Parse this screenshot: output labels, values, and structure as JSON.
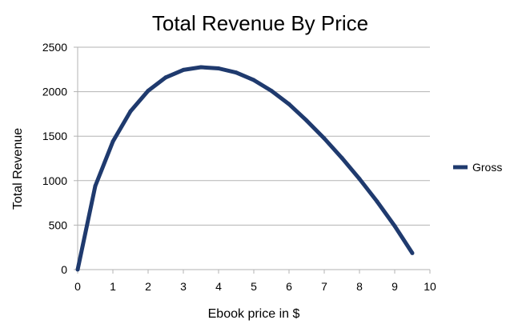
{
  "chart_data": {
    "type": "line",
    "title": "Total Revenue By Price",
    "xlabel": "Ebook price in $",
    "ylabel": "Total Revenue",
    "xlim": [
      0,
      10
    ],
    "ylim": [
      0,
      2500
    ],
    "xticks": [
      0,
      1,
      2,
      3,
      4,
      5,
      6,
      7,
      8,
      9,
      10
    ],
    "yticks": [
      0,
      500,
      1000,
      1500,
      2000,
      2500
    ],
    "grid": "horizontal",
    "legend_position": "right",
    "series": [
      {
        "name": "Gross",
        "color": "#1F3A6E",
        "x": [
          0,
          0.5,
          1,
          1.5,
          2,
          2.5,
          3,
          3.5,
          4,
          4.5,
          5,
          5.5,
          6,
          6.5,
          7,
          7.5,
          8,
          8.5,
          9,
          9.5
        ],
        "y": [
          0,
          940,
          1440,
          1780,
          2010,
          2160,
          2245,
          2275,
          2262,
          2215,
          2130,
          2010,
          1860,
          1675,
          1475,
          1255,
          1020,
          765,
          490,
          185
        ]
      }
    ]
  }
}
